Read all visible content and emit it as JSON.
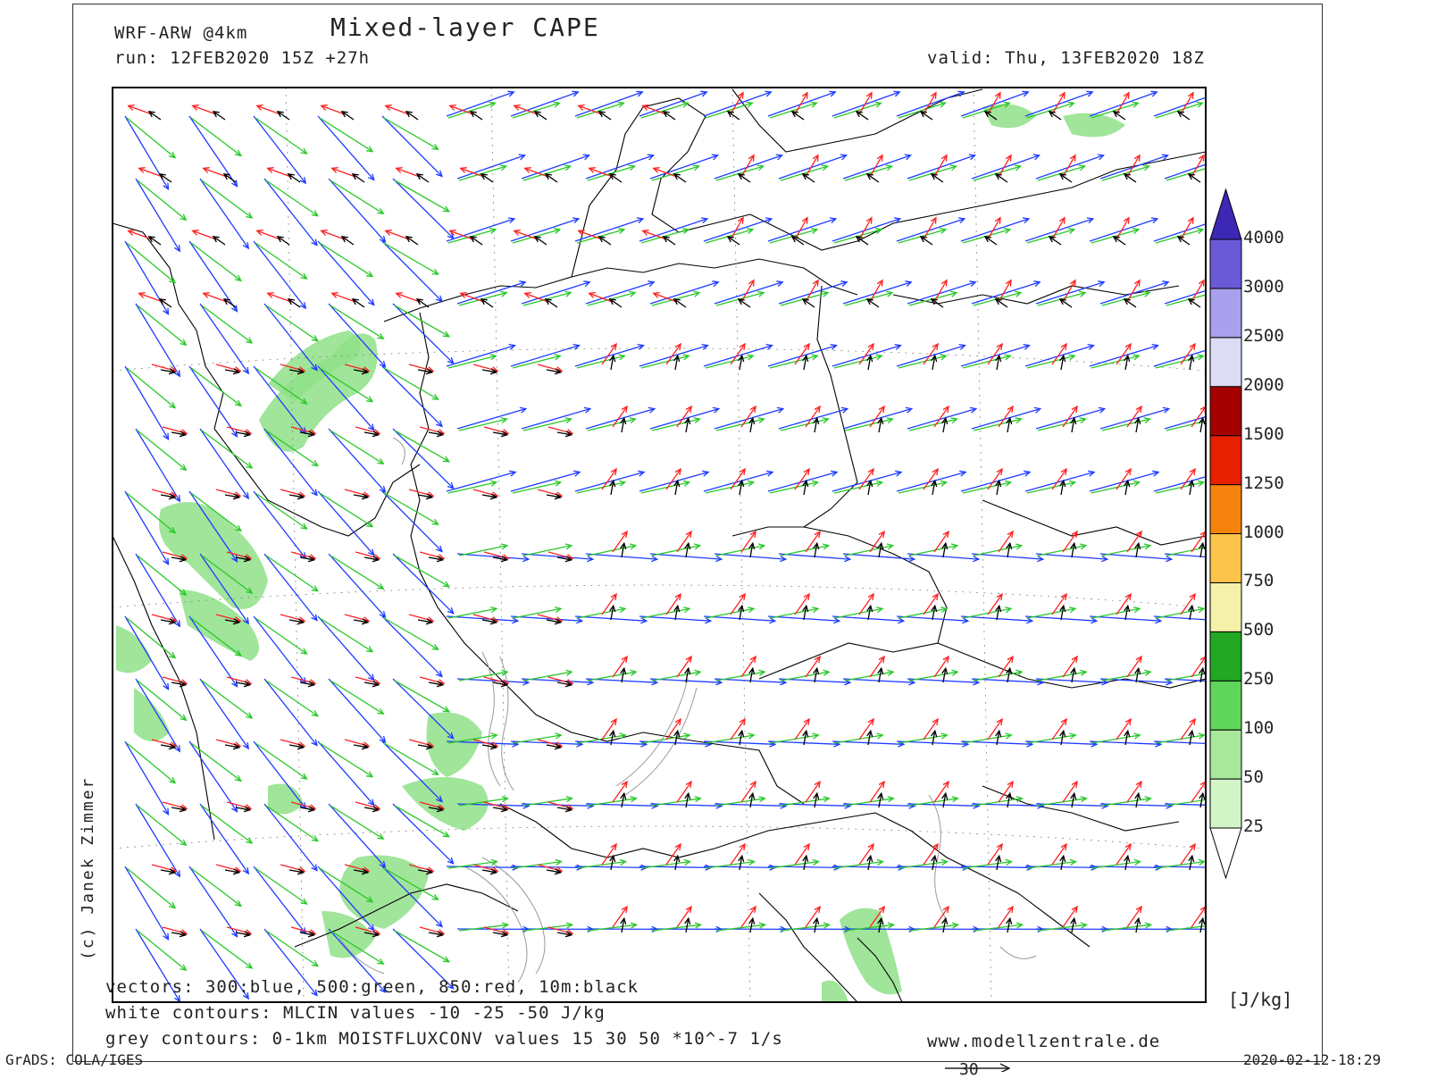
{
  "header": {
    "model": "WRF-ARW @4km",
    "title": "Mixed-layer CAPE",
    "run": "run: 12FEB2020 15Z +27h",
    "valid": "valid: Thu, 13FEB2020 18Z"
  },
  "legend": {
    "vectors": "vectors: 300:blue, 500:green, 850:red, 10m:black",
    "white_contours": "white contours: MLCIN values -10 -25 -50 J/kg",
    "grey_contours": "grey contours: 0-1km MOISTFLUXCONV values 15 30 50 *10^-7 1/s"
  },
  "footer": {
    "website": "www.modellzentrale.de",
    "software": "GrADS: COLA/IGES",
    "timestamp": "2020-02-12-18:29",
    "credit": "(c) Janek Zimmer",
    "vector_scale_label": "30"
  },
  "colorbar": {
    "unit": "[J/kg]",
    "levels": [
      "25",
      "50",
      "100",
      "250",
      "500",
      "750",
      "1000",
      "1250",
      "1500",
      "2000",
      "2500",
      "3000",
      "4000"
    ],
    "colors": [
      "#ffffff",
      "#d2f5c8",
      "#a8e89a",
      "#5fd65a",
      "#22a822",
      "#f5f0aa",
      "#fcc44a",
      "#f7830f",
      "#e62000",
      "#a50000",
      "#dcdcf5",
      "#a9a0ee",
      "#6a5ad8",
      "#3c28b4"
    ]
  },
  "vector_colors": {
    "300": "#1e3cff",
    "500": "#28c828",
    "850": "#ff2020",
    "10m": "#000000"
  },
  "map": {
    "cape_fill_color": "#8fe088",
    "border_color": "#000000",
    "contour_color": "#9a9a9a"
  }
}
